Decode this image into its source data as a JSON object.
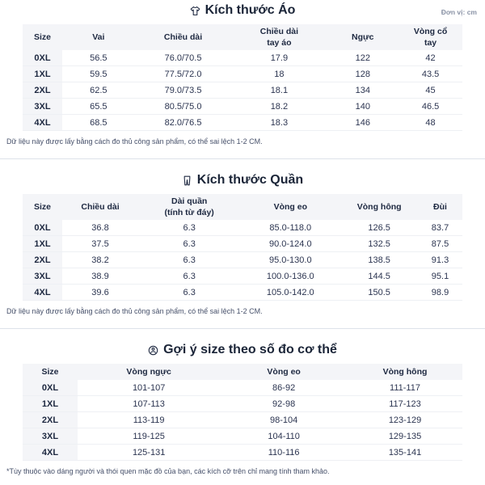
{
  "unit_label": "Đơn vị: cm",
  "sections": [
    {
      "title": "Kích thước Áo",
      "icon": "shirt-icon",
      "columns": [
        "Size",
        "Vai",
        "Chiều dài",
        "Chiều dài\ntay áo",
        "Ngực",
        "Vòng cổ\ntay"
      ],
      "rows": [
        [
          "0XL",
          "56.5",
          "76.0/70.5",
          "17.9",
          "122",
          "42"
        ],
        [
          "1XL",
          "59.5",
          "77.5/72.0",
          "18",
          "128",
          "43.5"
        ],
        [
          "2XL",
          "62.5",
          "79.0/73.5",
          "18.1",
          "134",
          "45"
        ],
        [
          "3XL",
          "65.5",
          "80.5/75.0",
          "18.2",
          "140",
          "46.5"
        ],
        [
          "4XL",
          "68.5",
          "82.0/76.5",
          "18.3",
          "146",
          "48"
        ]
      ],
      "footnote": "Dữ liệu này được lấy bằng cách đo thủ công sản phẩm, có thể sai lệch 1-2 CM."
    },
    {
      "title": "Kích thước Quần",
      "icon": "pants-icon",
      "columns": [
        "Size",
        "Chiều dài",
        "Dài quần\n(tính từ đáy)",
        "Vòng eo",
        "Vòng hông",
        "Đùi"
      ],
      "rows": [
        [
          "0XL",
          "36.8",
          "6.3",
          "85.0-118.0",
          "126.5",
          "83.7"
        ],
        [
          "1XL",
          "37.5",
          "6.3",
          "90.0-124.0",
          "132.5",
          "87.5"
        ],
        [
          "2XL",
          "38.2",
          "6.3",
          "95.0-130.0",
          "138.5",
          "91.3"
        ],
        [
          "3XL",
          "38.9",
          "6.3",
          "100.0-136.0",
          "144.5",
          "95.1"
        ],
        [
          "4XL",
          "39.6",
          "6.3",
          "105.0-142.0",
          "150.5",
          "98.9"
        ]
      ],
      "footnote": "Dữ liệu này được lấy bằng cách đo thủ công sản phẩm, có thể sai lệch 1-2 CM."
    },
    {
      "title": "Gợi ý size theo số đo cơ thể",
      "icon": "body-measure-icon",
      "columns": [
        "Size",
        "Vòng ngực",
        "Vòng eo",
        "Vòng hông"
      ],
      "rows": [
        [
          "0XL",
          "101-107",
          "86-92",
          "111-117"
        ],
        [
          "1XL",
          "107-113",
          "92-98",
          "117-123"
        ],
        [
          "2XL",
          "113-119",
          "98-104",
          "123-129"
        ],
        [
          "3XL",
          "119-125",
          "104-110",
          "129-135"
        ],
        [
          "4XL",
          "125-131",
          "110-116",
          "135-141"
        ]
      ],
      "footnote": "*Tùy thuộc vào dáng người và thói quen mặc đồ của bạn, các kích cỡ trên chỉ mang tính tham khảo."
    }
  ],
  "colors": {
    "heading_text": "#1b2538",
    "cell_text": "#2b3450",
    "header_bg": "#f4f5f8",
    "divider": "#dde2ea"
  }
}
